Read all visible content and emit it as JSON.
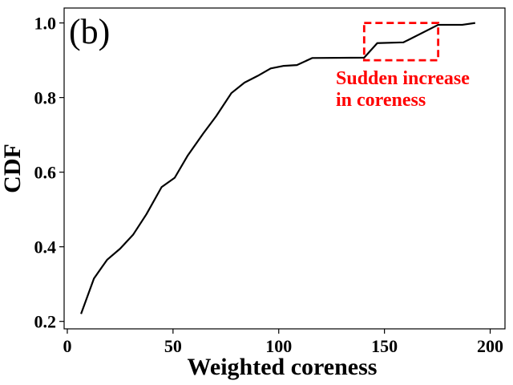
{
  "chart_data": {
    "type": "line",
    "panel_label": "(b)",
    "xlabel": "Weighted coreness",
    "ylabel": "CDF",
    "xlim": [
      -1.5,
      207
    ],
    "ylim": [
      0.18,
      1.04
    ],
    "xticks": [
      0,
      50,
      100,
      150,
      200
    ],
    "yticks": [
      0.2,
      0.4,
      0.6,
      0.8,
      1.0
    ],
    "xtick_labels": [
      "0",
      "50",
      "100",
      "150",
      "200"
    ],
    "ytick_labels": [
      "0.2",
      "0.4",
      "0.6",
      "0.8",
      "1.0"
    ],
    "grid": false,
    "series": [
      {
        "name": "CDF",
        "color": "#000000",
        "x": [
          6.5,
          12.6,
          18.8,
          25,
          31.2,
          37.4,
          44.6,
          50.8,
          57,
          64.2,
          70.4,
          77.6,
          83.8,
          90,
          96.2,
          102.4,
          108.6,
          115.8,
          140.4,
          146.6,
          159,
          175.4,
          186.8,
          192.9
        ],
        "y": [
          0.22,
          0.315,
          0.365,
          0.395,
          0.433,
          0.487,
          0.56,
          0.585,
          0.645,
          0.703,
          0.75,
          0.812,
          0.84,
          0.858,
          0.878,
          0.885,
          0.887,
          0.906,
          0.907,
          0.946,
          0.948,
          0.995,
          0.995,
          1.0
        ]
      }
    ],
    "annotations": [
      {
        "type": "dashed-box",
        "color": "#ff0000",
        "x_range": [
          140.4,
          175.4
        ],
        "y_range": [
          0.9,
          1.0
        ]
      },
      {
        "type": "text",
        "color": "#ff0000",
        "lines": [
          "Sudden increase",
          "in coreness"
        ]
      }
    ]
  }
}
